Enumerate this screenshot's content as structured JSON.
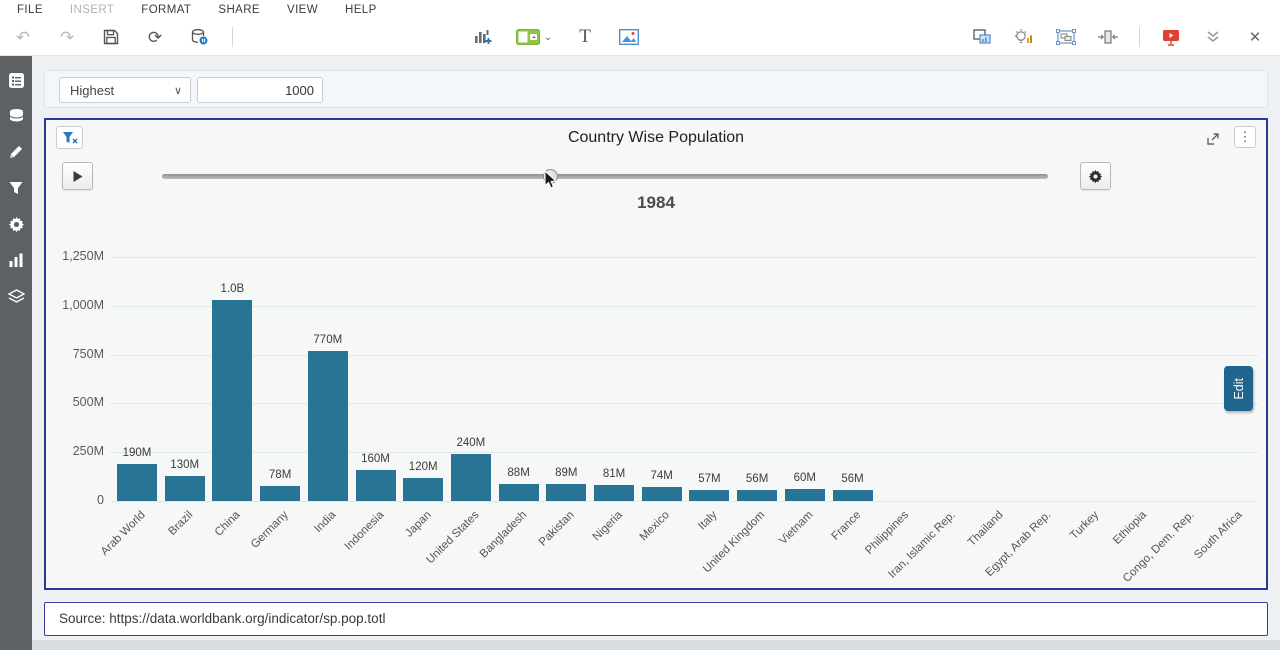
{
  "menu": {
    "items": [
      {
        "label": "FILE",
        "enabled": true
      },
      {
        "label": "INSERT",
        "enabled": false
      },
      {
        "label": "FORMAT",
        "enabled": true
      },
      {
        "label": "SHARE",
        "enabled": true
      },
      {
        "label": "VIEW",
        "enabled": true
      },
      {
        "label": "HELP",
        "enabled": true
      }
    ]
  },
  "toolbar": {
    "left_icons": [
      "undo",
      "redo",
      "save",
      "refresh",
      "data-sync"
    ],
    "center_icons": [
      "add-chart",
      "kpi-widget",
      "widget-dropdown-chevron",
      "text-tool",
      "image-tool"
    ],
    "right_icons": [
      "copy-view",
      "insights-bulb",
      "layout-frame",
      "fit-width",
      "present",
      "collapse-chevrons",
      "close"
    ],
    "text_tool_glyph": "T",
    "close_glyph": "✕",
    "kebab_glyph": "⋮"
  },
  "sidebar": {
    "icons": [
      "report",
      "database",
      "edit-pencil",
      "filter-funnel",
      "settings-gear",
      "bar-chart",
      "layers"
    ]
  },
  "filter_bar": {
    "operator": "Highest",
    "value": "1000",
    "chevron": "∨"
  },
  "chart_panel": {
    "title": "Country Wise Population",
    "year": "1984",
    "edit_label": "Edit"
  },
  "chart_data": {
    "type": "bar",
    "title": "Country Wise Population",
    "categories": [
      "Arab World",
      "Brazil",
      "China",
      "Germany",
      "India",
      "Indonesia",
      "Japan",
      "United States",
      "Bangladesh",
      "Pakistan",
      "Nigeria",
      "Mexico",
      "Italy",
      "United Kingdom",
      "Vietnam",
      "France",
      "Philippines",
      "Iran, Islamic Rep.",
      "Thailand",
      "Egypt, Arab Rep.",
      "Turkey",
      "Ethiopia",
      "Congo, Dem. Rep.",
      "South Africa"
    ],
    "values_millions": [
      190,
      130,
      1030,
      78,
      770,
      160,
      120,
      240,
      88,
      89,
      81,
      74,
      57,
      56,
      60,
      56,
      null,
      null,
      null,
      null,
      null,
      null,
      null,
      null
    ],
    "value_labels": [
      "190M",
      "130M",
      "1.0B",
      "78M",
      "770M",
      "160M",
      "120M",
      "240M",
      "88M",
      "89M",
      "81M",
      "74M",
      "57M",
      "56M",
      "60M",
      "56M",
      "",
      "",
      "",
      "",
      "",
      "",
      "",
      ""
    ],
    "yticks": [
      {
        "label": "0",
        "value": 0
      },
      {
        "label": "250M",
        "value": 250
      },
      {
        "label": "500M",
        "value": 500
      },
      {
        "label": "750M",
        "value": 750
      },
      {
        "label": "1,000M",
        "value": 1000
      },
      {
        "label": "1,250M",
        "value": 1250
      }
    ],
    "ylim": [
      0,
      1250
    ],
    "grid": true,
    "bar_color": "#297495",
    "xlabel_rotation_deg": -45
  },
  "source_bar": {
    "text": "Source: https://data.worldbank.org/indicator/sp.pop.totl"
  },
  "colors": {
    "bar": "#297495",
    "panel_border": "#2b3990",
    "source_border": "#3d3da0",
    "accent_blue": "#2479c2",
    "widget_green": "#8ec641",
    "present_red": "#e23f33",
    "edit_tab": "#20658e",
    "sidebar_bg": "#5d6164"
  }
}
